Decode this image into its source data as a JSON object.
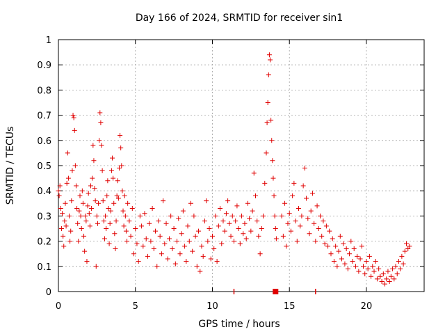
{
  "chart_data": {
    "type": "scatter",
    "title": "Day 166 of 2024, SRMTID for receiver sin1",
    "xlabel": "GPS time / hours",
    "ylabel": "SRMTID / TECUs",
    "xlim": [
      0,
      23.75
    ],
    "ylim": [
      0,
      1
    ],
    "xticks": [
      0,
      5,
      10,
      15,
      20
    ],
    "yticks": [
      0,
      0.1,
      0.2,
      0.3,
      0.4,
      0.5,
      0.6,
      0.7,
      0.8,
      0.9,
      1
    ],
    "xtick_labels": [
      "0",
      "5",
      "10",
      "15",
      "20"
    ],
    "ytick_labels": [
      "0",
      "0.1",
      "0.2",
      "0.3",
      "0.4",
      "0.5",
      "0.6",
      "0.7",
      "0.8",
      "0.9",
      "1"
    ],
    "grid": true,
    "colors": {
      "series": "#e00000",
      "grid": "#a0a0a0",
      "axis": "#000000"
    },
    "series": [
      {
        "name": "sin1",
        "marker": "+",
        "points": [
          [
            0.0,
            0.4
          ],
          [
            0.05,
            0.38
          ],
          [
            0.1,
            0.42
          ],
          [
            0.15,
            0.33
          ],
          [
            0.2,
            0.25
          ],
          [
            0.25,
            0.31
          ],
          [
            0.3,
            0.22
          ],
          [
            0.35,
            0.18
          ],
          [
            0.4,
            0.28
          ],
          [
            0.45,
            0.35
          ],
          [
            0.5,
            0.26
          ],
          [
            0.55,
            0.43
          ],
          [
            0.6,
            0.55
          ],
          [
            0.65,
            0.45
          ],
          [
            0.7,
            0.3
          ],
          [
            0.75,
            0.2
          ],
          [
            0.8,
            0.24
          ],
          [
            0.85,
            0.36
          ],
          [
            0.9,
            0.48
          ],
          [
            0.95,
            0.7
          ],
          [
            1.0,
            0.69
          ],
          [
            1.05,
            0.64
          ],
          [
            1.1,
            0.5
          ],
          [
            1.15,
            0.42
          ],
          [
            1.2,
            0.33
          ],
          [
            1.25,
            0.27
          ],
          [
            1.3,
            0.2
          ],
          [
            1.35,
            0.32
          ],
          [
            1.4,
            0.38
          ],
          [
            1.45,
            0.3
          ],
          [
            1.5,
            0.25
          ],
          [
            1.55,
            0.4
          ],
          [
            1.6,
            0.35
          ],
          [
            1.65,
            0.22
          ],
          [
            1.7,
            0.16
          ],
          [
            1.75,
            0.3
          ],
          [
            1.8,
            0.28
          ],
          [
            1.85,
            0.12
          ],
          [
            1.9,
            0.34
          ],
          [
            1.95,
            0.39
          ],
          [
            2.0,
            0.31
          ],
          [
            2.05,
            0.26
          ],
          [
            2.1,
            0.42
          ],
          [
            2.15,
            0.33
          ],
          [
            2.2,
            0.45
          ],
          [
            2.25,
            0.58
          ],
          [
            2.3,
            0.52
          ],
          [
            2.35,
            0.41
          ],
          [
            2.4,
            0.36
          ],
          [
            2.45,
            0.1
          ],
          [
            2.5,
            0.3
          ],
          [
            2.55,
            0.27
          ],
          [
            2.6,
            0.35
          ],
          [
            2.65,
            0.6
          ],
          [
            2.7,
            0.71
          ],
          [
            2.75,
            0.67
          ],
          [
            2.8,
            0.58
          ],
          [
            2.85,
            0.48
          ],
          [
            2.9,
            0.36
          ],
          [
            2.95,
            0.28
          ],
          [
            3.0,
            0.21
          ],
          [
            3.05,
            0.3
          ],
          [
            3.1,
            0.25
          ],
          [
            3.15,
            0.38
          ],
          [
            3.2,
            0.44
          ],
          [
            3.25,
            0.33
          ],
          [
            3.3,
            0.19
          ],
          [
            3.35,
            0.27
          ],
          [
            3.4,
            0.32
          ],
          [
            3.45,
            0.48
          ],
          [
            3.5,
            0.53
          ],
          [
            3.55,
            0.45
          ],
          [
            3.6,
            0.35
          ],
          [
            3.65,
            0.23
          ],
          [
            3.7,
            0.17
          ],
          [
            3.75,
            0.28
          ],
          [
            3.8,
            0.38
          ],
          [
            3.85,
            0.44
          ],
          [
            3.9,
            0.37
          ],
          [
            3.95,
            0.49
          ],
          [
            4.0,
            0.62
          ],
          [
            4.05,
            0.57
          ],
          [
            4.1,
            0.5
          ],
          [
            4.15,
            0.4
          ],
          [
            4.2,
            0.32
          ],
          [
            4.25,
            0.26
          ],
          [
            4.3,
            0.38
          ],
          [
            4.35,
            0.3
          ],
          [
            4.4,
            0.24
          ],
          [
            4.45,
            0.2
          ],
          [
            4.5,
            0.35
          ],
          [
            4.6,
            0.28
          ],
          [
            4.7,
            0.22
          ],
          [
            4.8,
            0.33
          ],
          [
            4.9,
            0.15
          ],
          [
            5.0,
            0.25
          ],
          [
            5.1,
            0.19
          ],
          [
            5.2,
            0.12
          ],
          [
            5.3,
            0.3
          ],
          [
            5.4,
            0.26
          ],
          [
            5.5,
            0.18
          ],
          [
            5.6,
            0.31
          ],
          [
            5.7,
            0.21
          ],
          [
            5.8,
            0.14
          ],
          [
            5.9,
            0.27
          ],
          [
            6.0,
            0.2
          ],
          [
            6.1,
            0.33
          ],
          [
            6.2,
            0.17
          ],
          [
            6.3,
            0.24
          ],
          [
            6.4,
            0.1
          ],
          [
            6.5,
            0.28
          ],
          [
            6.6,
            0.22
          ],
          [
            6.7,
            0.15
          ],
          [
            6.8,
            0.36
          ],
          [
            6.9,
            0.19
          ],
          [
            7.0,
            0.27
          ],
          [
            7.1,
            0.13
          ],
          [
            7.2,
            0.21
          ],
          [
            7.3,
            0.3
          ],
          [
            7.4,
            0.17
          ],
          [
            7.5,
            0.25
          ],
          [
            7.6,
            0.11
          ],
          [
            7.7,
            0.2
          ],
          [
            7.8,
            0.29
          ],
          [
            7.9,
            0.15
          ],
          [
            8.0,
            0.23
          ],
          [
            8.1,
            0.32
          ],
          [
            8.2,
            0.18
          ],
          [
            8.3,
            0.12
          ],
          [
            8.4,
            0.26
          ],
          [
            8.5,
            0.2
          ],
          [
            8.6,
            0.35
          ],
          [
            8.7,
            0.16
          ],
          [
            8.8,
            0.3
          ],
          [
            8.9,
            0.22
          ],
          [
            9.0,
            0.1
          ],
          [
            9.1,
            0.24
          ],
          [
            9.2,
            0.08
          ],
          [
            9.3,
            0.18
          ],
          [
            9.4,
            0.14
          ],
          [
            9.5,
            0.28
          ],
          [
            9.6,
            0.36
          ],
          [
            9.7,
            0.2
          ],
          [
            9.8,
            0.25
          ],
          [
            9.9,
            0.13
          ],
          [
            10.0,
            0.22
          ],
          [
            10.1,
            0.17
          ],
          [
            10.2,
            0.3
          ],
          [
            10.3,
            0.12
          ],
          [
            10.4,
            0.26
          ],
          [
            10.5,
            0.33
          ],
          [
            10.6,
            0.19
          ],
          [
            10.7,
            0.28
          ],
          [
            10.8,
            0.24
          ],
          [
            10.9,
            0.31
          ],
          [
            11.0,
            0.36
          ],
          [
            11.1,
            0.27
          ],
          [
            11.2,
            0.22
          ],
          [
            11.3,
            0.3
          ],
          [
            11.4,
            0.2
          ],
          [
            11.5,
            0.28
          ],
          [
            11.6,
            0.34
          ],
          [
            11.7,
            0.25
          ],
          [
            11.8,
            0.19
          ],
          [
            11.9,
            0.3
          ],
          [
            12.0,
            0.23
          ],
          [
            12.1,
            0.27
          ],
          [
            12.2,
            0.21
          ],
          [
            12.3,
            0.35
          ],
          [
            12.4,
            0.29
          ],
          [
            12.5,
            0.24
          ],
          [
            12.6,
            0.32
          ],
          [
            12.7,
            0.47
          ],
          [
            12.8,
            0.38
          ],
          [
            12.9,
            0.28
          ],
          [
            13.0,
            0.22
          ],
          [
            13.1,
            0.15
          ],
          [
            13.2,
            0.25
          ],
          [
            13.3,
            0.3
          ],
          [
            13.4,
            0.43
          ],
          [
            13.5,
            0.55
          ],
          [
            13.55,
            0.67
          ],
          [
            13.6,
            0.75
          ],
          [
            13.65,
            0.86
          ],
          [
            13.7,
            0.94
          ],
          [
            13.75,
            0.92
          ],
          [
            13.8,
            0.68
          ],
          [
            13.85,
            0.6
          ],
          [
            13.9,
            0.52
          ],
          [
            13.95,
            0.45
          ],
          [
            14.0,
            0.38
          ],
          [
            14.05,
            0.3
          ],
          [
            14.1,
            0.25
          ],
          [
            14.15,
            0.21
          ],
          [
            14.5,
            0.3
          ],
          [
            14.6,
            0.22
          ],
          [
            14.7,
            0.35
          ],
          [
            14.8,
            0.18
          ],
          [
            14.9,
            0.27
          ],
          [
            15.0,
            0.31
          ],
          [
            15.1,
            0.24
          ],
          [
            15.2,
            0.38
          ],
          [
            15.3,
            0.43
          ],
          [
            15.4,
            0.28
          ],
          [
            15.5,
            0.2
          ],
          [
            15.6,
            0.33
          ],
          [
            15.7,
            0.26
          ],
          [
            15.8,
            0.3
          ],
          [
            15.9,
            0.42
          ],
          [
            16.0,
            0.49
          ],
          [
            16.1,
            0.37
          ],
          [
            16.2,
            0.29
          ],
          [
            16.3,
            0.23
          ],
          [
            16.4,
            0.32
          ],
          [
            16.5,
            0.39
          ],
          [
            16.6,
            0.27
          ],
          [
            16.7,
            0.2
          ],
          [
            16.8,
            0.34
          ],
          [
            16.9,
            0.25
          ],
          [
            17.0,
            0.3
          ],
          [
            17.1,
            0.22
          ],
          [
            17.2,
            0.28
          ],
          [
            17.3,
            0.19
          ],
          [
            17.4,
            0.26
          ],
          [
            17.5,
            0.18
          ],
          [
            17.6,
            0.24
          ],
          [
            17.7,
            0.15
          ],
          [
            17.8,
            0.21
          ],
          [
            17.9,
            0.12
          ],
          [
            18.0,
            0.18
          ],
          [
            18.1,
            0.1
          ],
          [
            18.2,
            0.16
          ],
          [
            18.3,
            0.22
          ],
          [
            18.4,
            0.13
          ],
          [
            18.5,
            0.19
          ],
          [
            18.6,
            0.11
          ],
          [
            18.7,
            0.17
          ],
          [
            18.8,
            0.09
          ],
          [
            18.9,
            0.15
          ],
          [
            19.0,
            0.2
          ],
          [
            19.1,
            0.12
          ],
          [
            19.2,
            0.17
          ],
          [
            19.3,
            0.1
          ],
          [
            19.4,
            0.14
          ],
          [
            19.5,
            0.08
          ],
          [
            19.6,
            0.13
          ],
          [
            19.7,
            0.18
          ],
          [
            19.8,
            0.1
          ],
          [
            19.9,
            0.07
          ],
          [
            20.0,
            0.12
          ],
          [
            20.1,
            0.09
          ],
          [
            20.2,
            0.14
          ],
          [
            20.3,
            0.06
          ],
          [
            20.4,
            0.1
          ],
          [
            20.5,
            0.08
          ],
          [
            20.6,
            0.12
          ],
          [
            20.7,
            0.05
          ],
          [
            20.8,
            0.09
          ],
          [
            20.9,
            0.06
          ],
          [
            21.0,
            0.04
          ],
          [
            21.1,
            0.07
          ],
          [
            21.2,
            0.03
          ],
          [
            21.3,
            0.05
          ],
          [
            21.4,
            0.08
          ],
          [
            21.5,
            0.04
          ],
          [
            21.6,
            0.06
          ],
          [
            21.7,
            0.09
          ],
          [
            21.8,
            0.05
          ],
          [
            21.9,
            0.1
          ],
          [
            22.0,
            0.07
          ],
          [
            22.1,
            0.12
          ],
          [
            22.2,
            0.09
          ],
          [
            22.3,
            0.14
          ],
          [
            22.4,
            0.11
          ],
          [
            22.5,
            0.16
          ],
          [
            22.6,
            0.19
          ],
          [
            22.7,
            0.17
          ],
          [
            22.8,
            0.18
          ]
        ]
      }
    ],
    "zero_markers": [
      {
        "x": 11.4,
        "style": "tick"
      },
      {
        "x": 14.1,
        "style": "block"
      },
      {
        "x": 16.7,
        "style": "tick"
      }
    ]
  }
}
